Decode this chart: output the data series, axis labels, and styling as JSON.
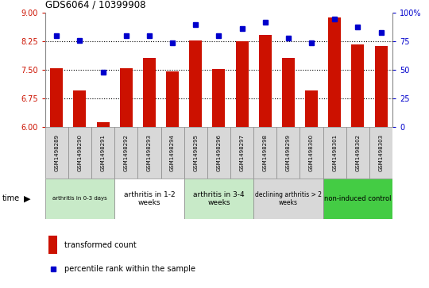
{
  "title": "GDS6064 / 10399908",
  "samples": [
    "GSM1498289",
    "GSM1498290",
    "GSM1498291",
    "GSM1498292",
    "GSM1498293",
    "GSM1498294",
    "GSM1498295",
    "GSM1498296",
    "GSM1498297",
    "GSM1498298",
    "GSM1498299",
    "GSM1498300",
    "GSM1498301",
    "GSM1498302",
    "GSM1498303"
  ],
  "transformed_count": [
    7.55,
    6.95,
    6.13,
    7.55,
    7.82,
    7.45,
    8.28,
    7.52,
    8.25,
    8.42,
    7.82,
    6.95,
    8.88,
    8.18,
    8.12
  ],
  "percentile_rank": [
    80,
    76,
    48,
    80,
    80,
    74,
    90,
    80,
    86,
    92,
    78,
    74,
    95,
    88,
    83
  ],
  "bar_color": "#cc1100",
  "dot_color": "#0000cc",
  "ylim_left": [
    6,
    9
  ],
  "ylim_right": [
    0,
    100
  ],
  "yticks_left": [
    6,
    6.75,
    7.5,
    8.25,
    9
  ],
  "yticks_right": [
    0,
    25,
    50,
    75,
    100
  ],
  "groups": [
    {
      "label": "arthritis in 0-3 days",
      "start": 0,
      "end": 3,
      "color": "#c8eac8",
      "fontsize": 5.0
    },
    {
      "label": "arthritis in 1-2\nweeks",
      "start": 3,
      "end": 6,
      "color": "#ffffff",
      "fontsize": 6.5
    },
    {
      "label": "arthritis in 3-4\nweeks",
      "start": 6,
      "end": 9,
      "color": "#c8eac8",
      "fontsize": 6.5
    },
    {
      "label": "declining arthritis > 2\nweeks",
      "start": 9,
      "end": 12,
      "color": "#d8d8d8",
      "fontsize": 5.5
    },
    {
      "label": "non-induced control",
      "start": 12,
      "end": 15,
      "color": "#44cc44",
      "fontsize": 6.0
    }
  ],
  "legend_bar_label": "transformed count",
  "legend_dot_label": "percentile rank within the sample",
  "dotted_lines": [
    6.75,
    7.5,
    8.25
  ],
  "cell_bg": "#d8d8d8",
  "cell_edge": "#888888"
}
